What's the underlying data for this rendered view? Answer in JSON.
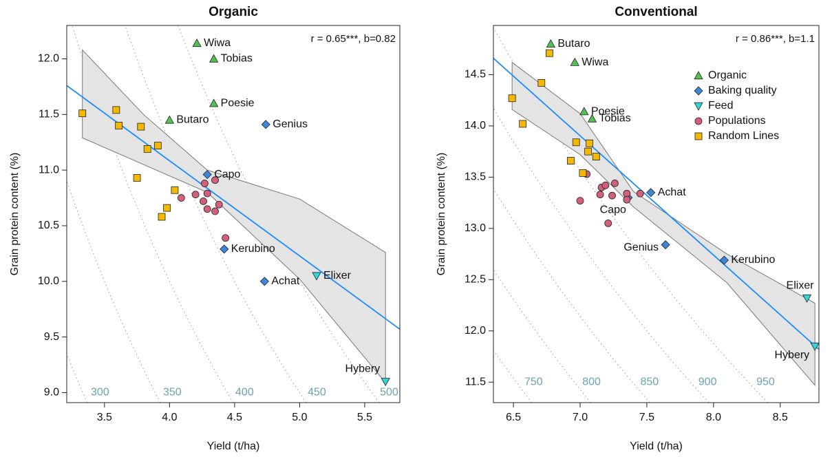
{
  "chart_data": [
    {
      "type": "scatter",
      "title": "Organic",
      "xlabel": "Yield (t/ha)",
      "ylabel": "Grain protein content (%)",
      "annotation": "r = 0.65***, b=0.82",
      "xlim": [
        3.21,
        5.77
      ],
      "ylim": [
        8.91,
        12.3
      ],
      "xticks": [
        3.5,
        {
          "value": 4,
          "label": "4.0"
        },
        4.5,
        {
          "value": 5,
          "label": "5.0"
        },
        5.5
      ],
      "yticks": [
        {
          "value": 9,
          "label": "9.0"
        },
        9.5,
        {
          "value": 10,
          "label": "10.0"
        },
        10.5,
        {
          "value": 11,
          "label": "11.0"
        },
        11.5,
        {
          "value": 12,
          "label": "12.0"
        }
      ],
      "series": [
        {
          "marker": "triangle-up",
          "color": "#52c152",
          "x": [
            4.21,
            4.34,
            4.34,
            4.0
          ],
          "values": [
            12.14,
            12.0,
            11.6,
            11.45
          ],
          "labels": [
            "Wiwa",
            "Tobias",
            "Poesie",
            "Butaro"
          ]
        },
        {
          "marker": "diamond",
          "color": "#3d86d8",
          "x": [
            4.74,
            4.29,
            4.42,
            4.73
          ],
          "values": [
            11.41,
            10.96,
            10.29,
            10.0
          ],
          "labels": [
            "Genius",
            "Capo",
            "Kerubino",
            "Achat"
          ]
        },
        {
          "marker": "triangle-down",
          "color": "#33d6d6",
          "x": [
            5.13,
            5.66
          ],
          "values": [
            10.05,
            9.1
          ],
          "labels": [
            "Elixer",
            "Hybery"
          ]
        },
        {
          "marker": "circle",
          "color": "#d3607a",
          "x": [
            4.09,
            4.2,
            4.26,
            4.29,
            4.27,
            4.35,
            4.29,
            4.35,
            4.38,
            4.43
          ],
          "values": [
            10.75,
            10.78,
            10.72,
            10.79,
            10.88,
            10.91,
            10.65,
            10.63,
            10.69,
            10.39
          ]
        },
        {
          "marker": "square",
          "color": "#f5b800",
          "x": [
            3.33,
            3.59,
            3.61,
            3.78,
            3.83,
            3.91,
            3.75,
            4.04,
            3.98,
            3.94
          ],
          "values": [
            11.51,
            11.54,
            11.4,
            11.39,
            11.19,
            11.22,
            10.93,
            10.82,
            10.66,
            10.58
          ]
        }
      ],
      "fit": {
        "color": "#1a8cff",
        "x": [
          3.21,
          5.77
        ],
        "values": [
          11.76,
          9.57
        ]
      },
      "band": {
        "x": [
          3.33,
          3.8,
          4.29,
          5.0,
          5.66
        ],
        "upper": [
          12.08,
          11.5,
          11.0,
          10.74,
          10.26
        ],
        "lower": [
          11.29,
          11.05,
          10.8,
          10.02,
          9.09
        ]
      },
      "contours": {
        "color": "#6aa4b0",
        "values": [
          300,
          350,
          400,
          450,
          500
        ]
      }
    },
    {
      "type": "scatter",
      "title": "Conventional",
      "xlabel": "Yield (t/ha)",
      "ylabel": "Grain protein content (%)",
      "annotation": "r = 0.86***, b=1.1",
      "legend": "top-right",
      "xlim": [
        6.35,
        8.79
      ],
      "ylim": [
        11.3,
        14.98
      ],
      "xticks": [
        6.5,
        {
          "value": 7,
          "label": "7.0"
        },
        7.5,
        {
          "value": 8,
          "label": "8.0"
        },
        8.5
      ],
      "yticks": [
        11.5,
        {
          "value": 12,
          "label": "12.0"
        },
        12.5,
        {
          "value": 13,
          "label": "13.0"
        },
        13.5,
        {
          "value": 14,
          "label": "14.0"
        },
        14.5
      ],
      "series": [
        {
          "name": "Organic",
          "marker": "triangle-up",
          "color": "#52c152",
          "x": [
            6.78,
            6.96,
            7.03,
            7.09
          ],
          "values": [
            14.8,
            14.62,
            14.14,
            14.07
          ],
          "labels": [
            "Butaro",
            "Wiwa",
            "Poesie",
            "Tobias"
          ]
        },
        {
          "name": "Baking quality",
          "marker": "diamond",
          "color": "#3d86d8",
          "x": [
            7.53,
            7.36,
            7.64,
            8.08
          ],
          "values": [
            13.35,
            13.3,
            12.84,
            12.69
          ],
          "labels": [
            "Achat",
            "Capo",
            "Genius",
            "Kerubino"
          ]
        },
        {
          "name": "Feed",
          "marker": "triangle-down",
          "color": "#33d6d6",
          "x": [
            8.7,
            8.76
          ],
          "values": [
            12.32,
            11.85
          ],
          "labels": [
            "Elixer",
            "Hybery"
          ]
        },
        {
          "name": "Populations",
          "marker": "circle",
          "color": "#d3607a",
          "x": [
            7.0,
            7.05,
            7.16,
            7.19,
            7.26,
            7.24,
            7.15,
            7.21,
            7.35,
            7.45,
            7.35
          ],
          "values": [
            13.27,
            13.53,
            13.4,
            13.42,
            13.44,
            13.32,
            13.33,
            13.05,
            13.34,
            13.34,
            13.28
          ]
        },
        {
          "name": "Random Lines",
          "marker": "square",
          "color": "#f5b800",
          "x": [
            6.49,
            6.71,
            6.77,
            6.57,
            6.97,
            7.07,
            6.93,
            7.12,
            7.06,
            7.02
          ],
          "values": [
            14.27,
            14.42,
            14.71,
            14.02,
            13.84,
            13.83,
            13.66,
            13.7,
            13.75,
            13.54
          ]
        }
      ],
      "fit": {
        "color": "#1a8cff",
        "x": [
          6.35,
          8.79
        ],
        "values": [
          14.66,
          11.82
        ]
      },
      "band": {
        "x": [
          6.49,
          7.0,
          7.4,
          8.1,
          8.76
        ],
        "upper": [
          14.62,
          14.12,
          13.36,
          12.75,
          12.27
        ],
        "lower": [
          14.16,
          13.72,
          13.21,
          12.47,
          11.47
        ]
      },
      "contours": {
        "color": "#6aa4b0",
        "values": [
          750,
          800,
          850,
          900,
          950
        ]
      }
    }
  ]
}
